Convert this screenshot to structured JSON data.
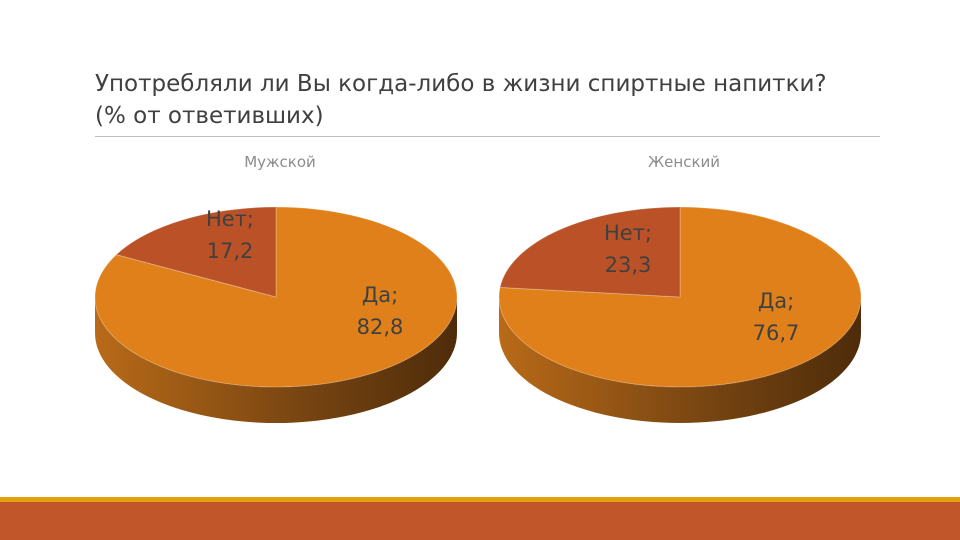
{
  "slide": {
    "title_line1": "Употребляли ли Вы когда-либо в жизни спиртные напитки?",
    "title_line2": "(% от ответивших)"
  },
  "colors": {
    "yes": "#e0801a",
    "no": "#bb5227",
    "title_text": "#404040",
    "chart_title_text": "#8c8c8c",
    "label_text": "#404040",
    "accent_bar": "#e5a00d",
    "bottom_bar": "#c0562a"
  },
  "chart_data": [
    {
      "type": "pie",
      "title": "Мужской",
      "categories": [
        "Да",
        "Нет"
      ],
      "values": [
        82.8,
        17.2
      ],
      "data_labels": [
        "Да;\n82,8",
        "Нет;\n17,2"
      ],
      "style": "3d"
    },
    {
      "type": "pie",
      "title": "Женский",
      "categories": [
        "Да",
        "Нет"
      ],
      "values": [
        76.7,
        23.3
      ],
      "data_labels": [
        "Да;\n76,7",
        "Нет;\n23,3"
      ],
      "style": "3d"
    }
  ]
}
